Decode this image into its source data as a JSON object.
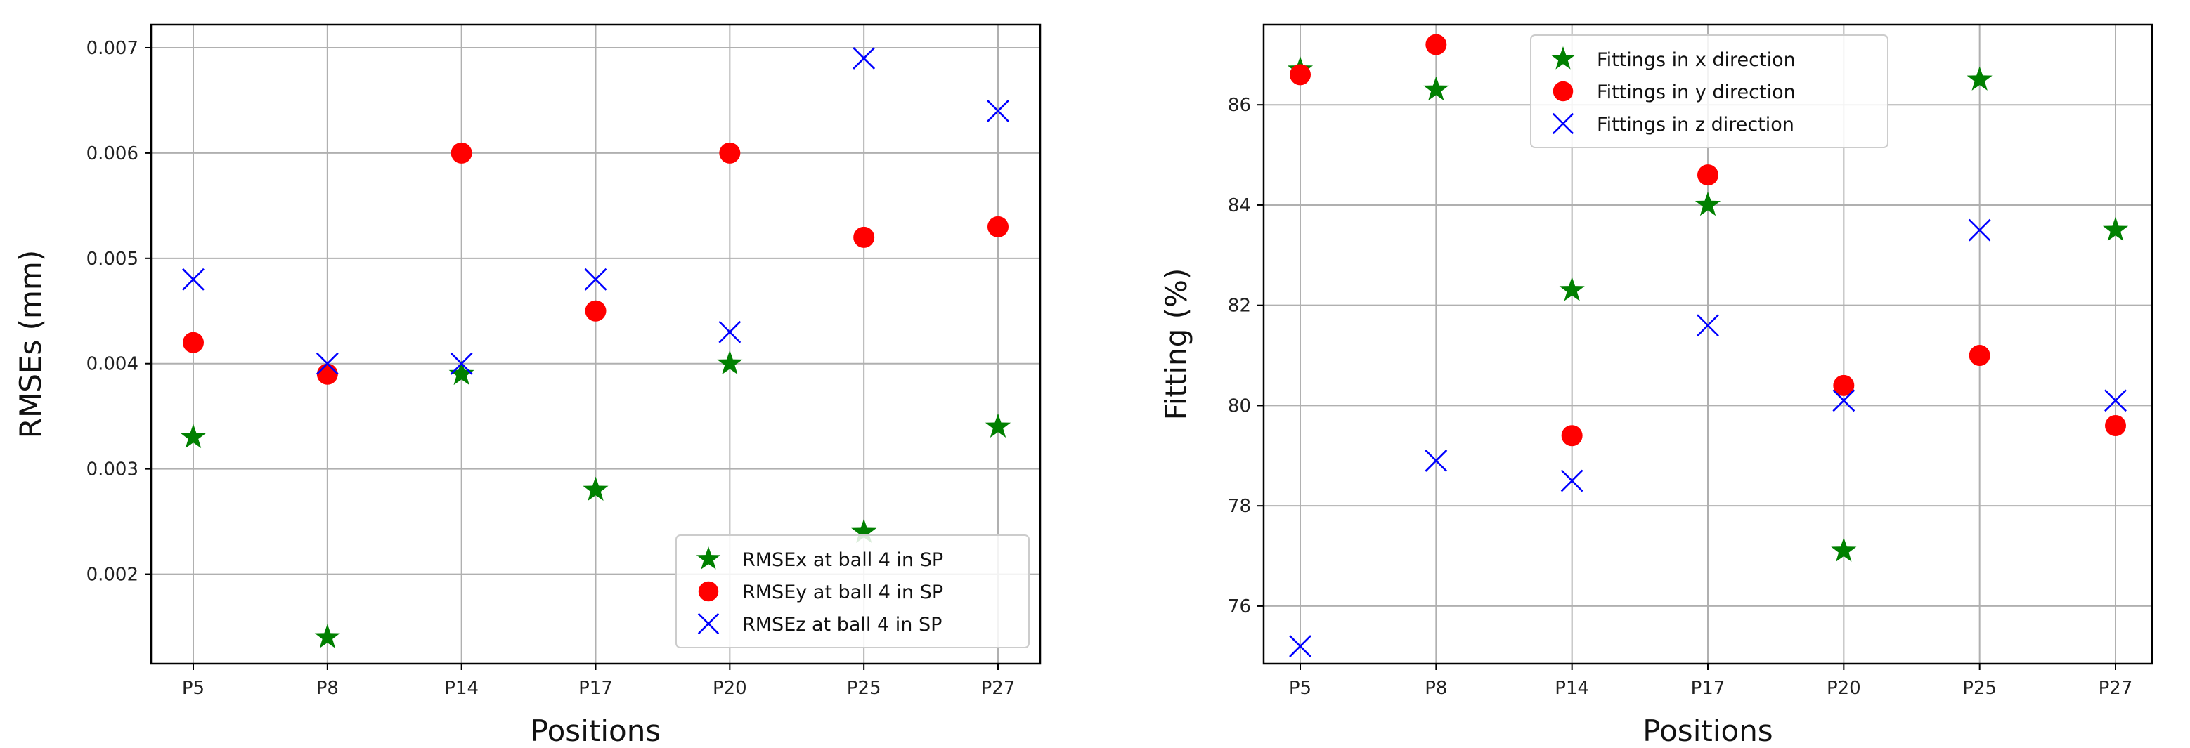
{
  "chart_data": [
    {
      "type": "scatter",
      "title": "",
      "xlabel": "Positions",
      "ylabel": "RMSEs (mm)",
      "categories": [
        "P5",
        "P8",
        "P14",
        "P17",
        "P20",
        "P25",
        "P27"
      ],
      "ylim": [
        0.00115,
        0.00722
      ],
      "yticks": [
        0.002,
        0.003,
        0.004,
        0.005,
        0.006,
        0.007
      ],
      "ytick_labels": [
        "0.002",
        "0.003",
        "0.004",
        "0.005",
        "0.006",
        "0.007"
      ],
      "grid": true,
      "legend_position": "lower-right",
      "series": [
        {
          "name": "RMSEx at ball 4 in SP",
          "marker": "star",
          "color": "#008000",
          "values": [
            0.0033,
            0.0014,
            0.0039,
            0.0028,
            0.004,
            0.0024,
            0.0034
          ]
        },
        {
          "name": "RMSEy at ball 4 in SP",
          "marker": "circle",
          "color": "#ff0000",
          "values": [
            0.0042,
            0.0039,
            0.006,
            0.0045,
            0.006,
            0.0052,
            0.0053
          ]
        },
        {
          "name": "RMSEz at ball 4 in SP",
          "marker": "x",
          "color": "#0000ff",
          "values": [
            0.0048,
            0.004,
            0.004,
            0.0048,
            0.0043,
            0.0069,
            0.0064
          ]
        }
      ]
    },
    {
      "type": "scatter",
      "title": "",
      "xlabel": "Positions",
      "ylabel": "Fitting (%)",
      "categories": [
        "P5",
        "P8",
        "P14",
        "P17",
        "P20",
        "P25",
        "P27"
      ],
      "ylim": [
        74.85,
        87.6
      ],
      "yticks": [
        76,
        78,
        80,
        82,
        84,
        86
      ],
      "ytick_labels": [
        "76",
        "78",
        "80",
        "82",
        "84",
        "86"
      ],
      "grid": true,
      "legend_position": "upper-center",
      "series": [
        {
          "name": "Fittings in x direction",
          "marker": "star",
          "color": "#008000",
          "values": [
            86.7,
            86.3,
            82.3,
            84.0,
            77.1,
            86.5,
            83.5
          ]
        },
        {
          "name": "Fittings in y direction",
          "marker": "circle",
          "color": "#ff0000",
          "values": [
            86.6,
            87.2,
            79.4,
            84.6,
            80.4,
            81.0,
            79.6
          ]
        },
        {
          "name": "Fittings in z direction",
          "marker": "x",
          "color": "#0000ff",
          "values": [
            75.2,
            78.9,
            78.5,
            81.6,
            80.1,
            83.5,
            80.1
          ]
        }
      ]
    }
  ]
}
